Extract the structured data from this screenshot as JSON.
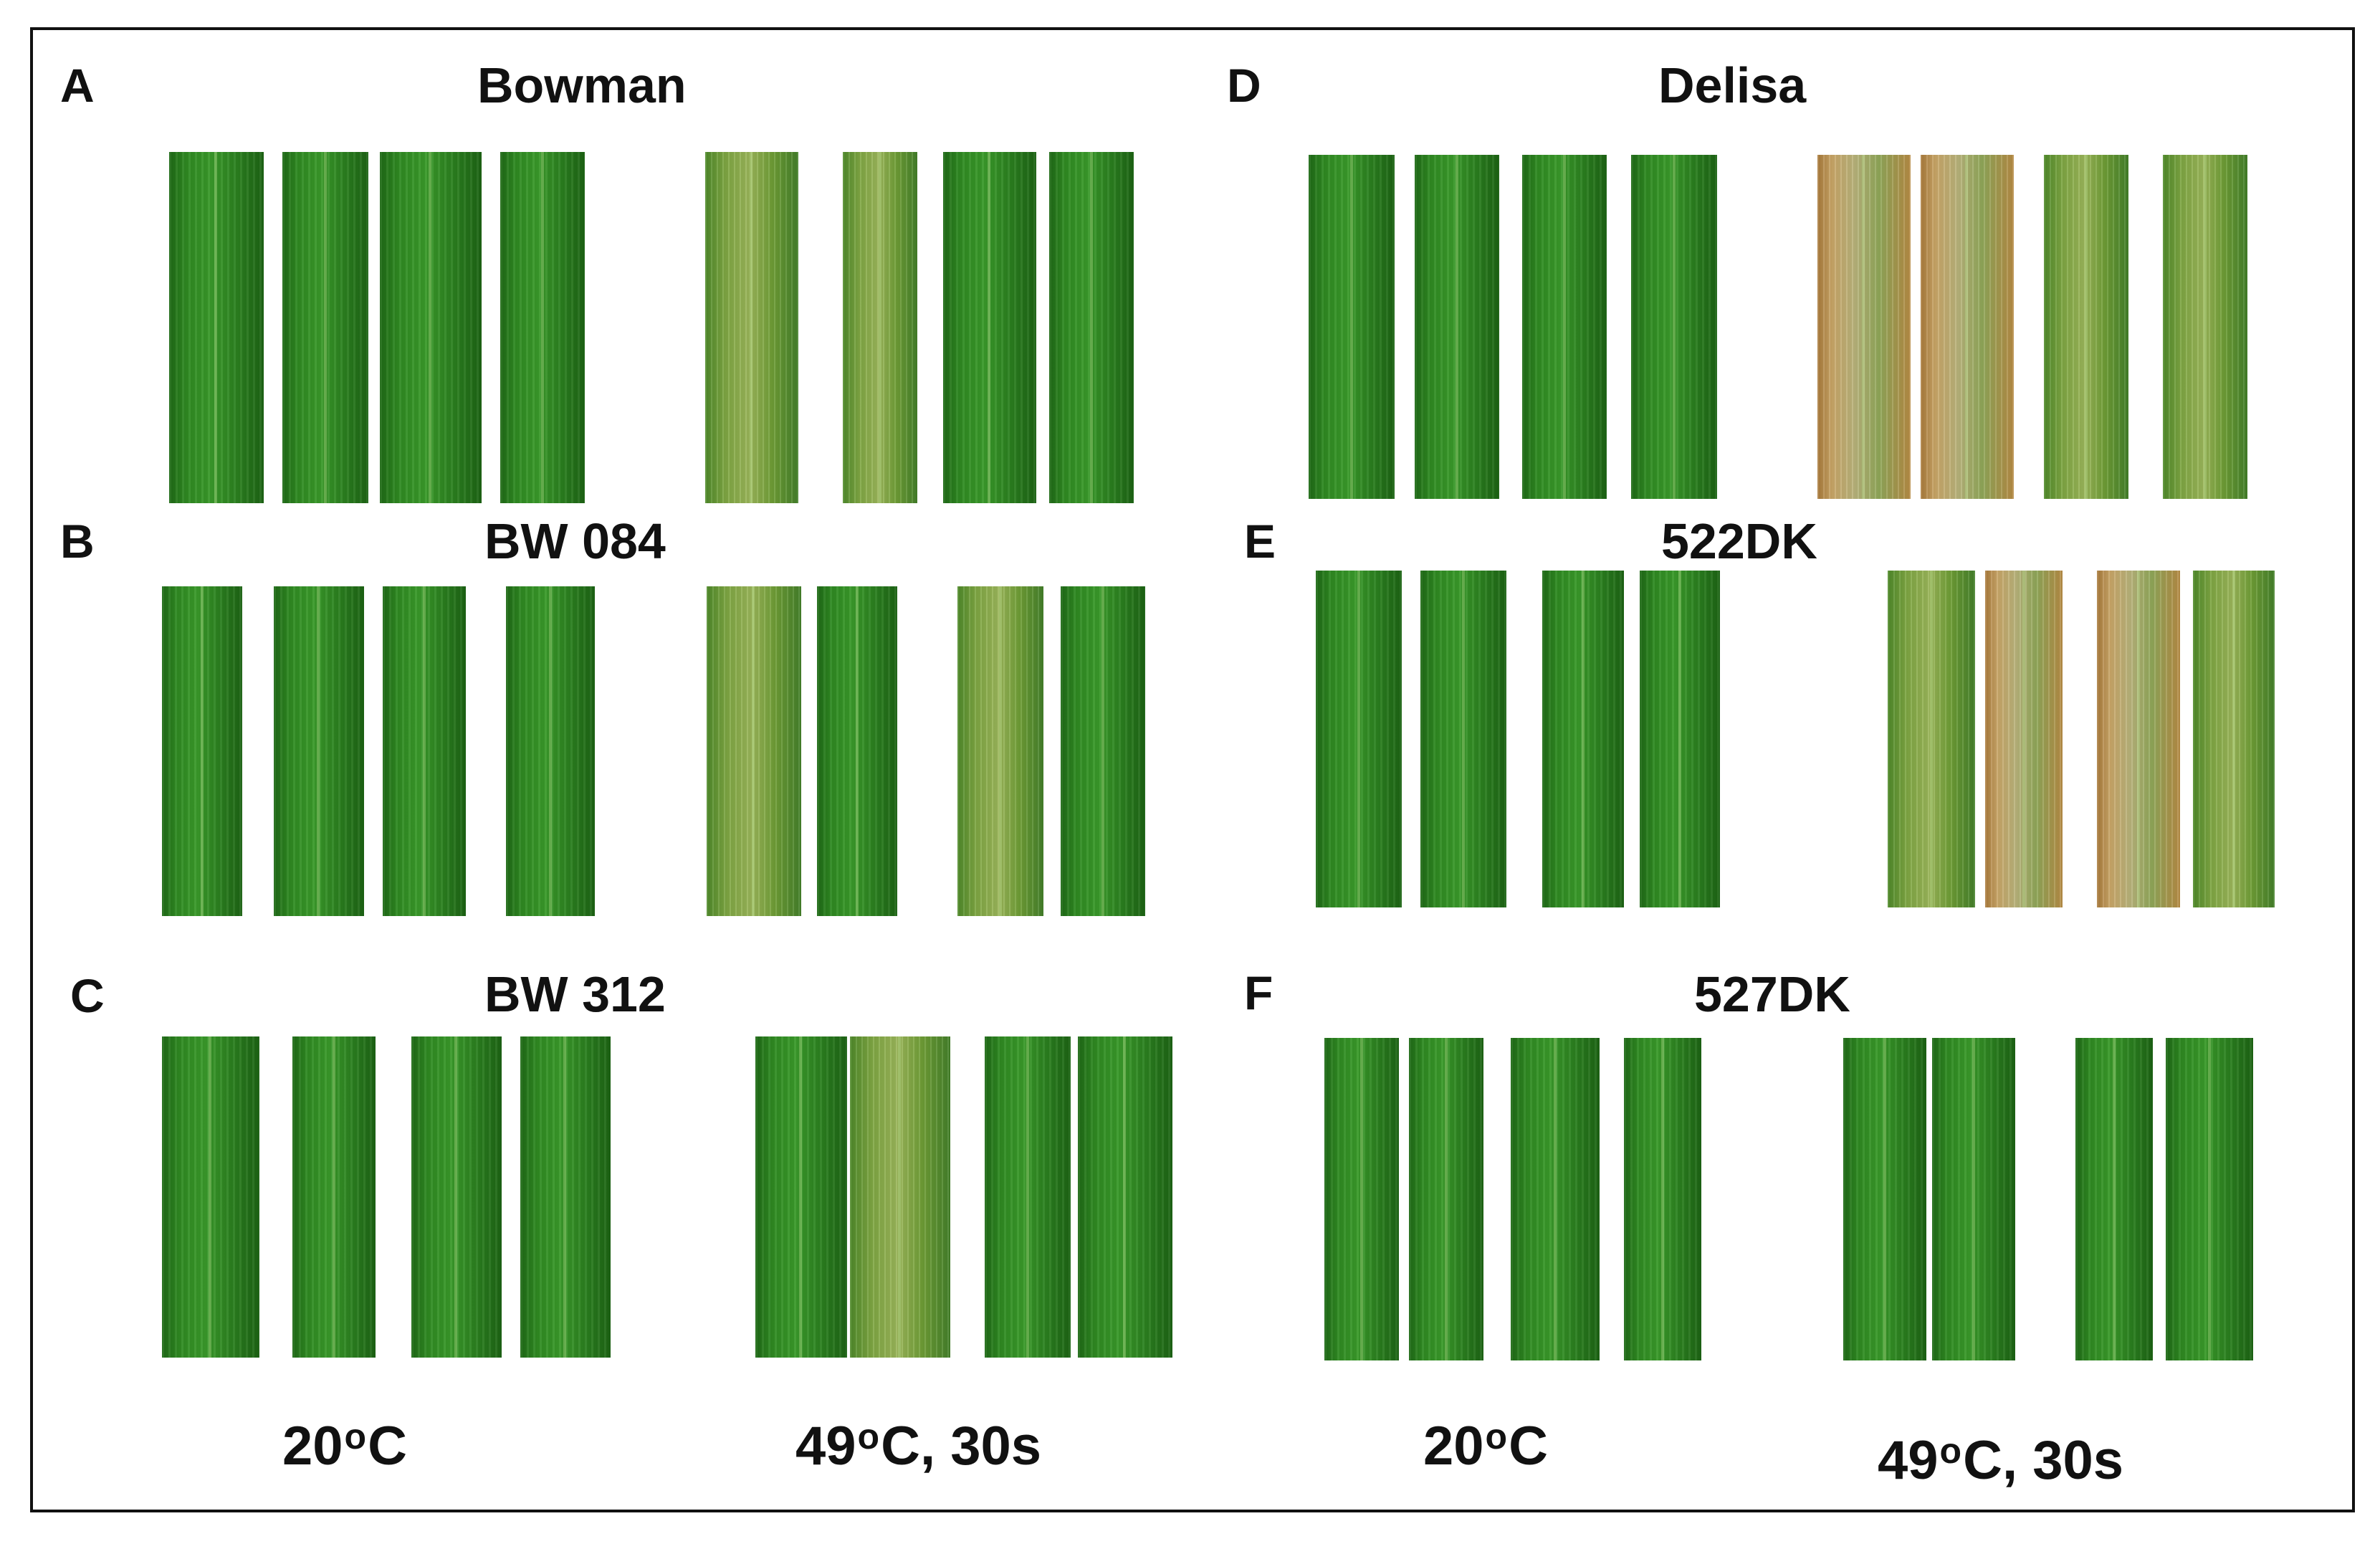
{
  "panels": [
    {
      "letter": "A",
      "title": "Bowman"
    },
    {
      "letter": "B",
      "title": "BW 084"
    },
    {
      "letter": "C",
      "title": "BW 312"
    },
    {
      "letter": "D",
      "title": "Delisa"
    },
    {
      "letter": "E",
      "title": "522DK"
    },
    {
      "letter": "F",
      "title": "527DK"
    }
  ],
  "conditions": {
    "control": {
      "value": "20",
      "degree": "o",
      "unit": "C"
    },
    "heat": {
      "value": "49",
      "degree": "o",
      "unit": "C, 30s"
    }
  },
  "colors": {
    "leaf_green": "#2f8a22",
    "stressed_leaf": "#9bb65a",
    "scorched_leaf": "#c8a567",
    "frame": "#111111",
    "background": "#ffffff"
  }
}
